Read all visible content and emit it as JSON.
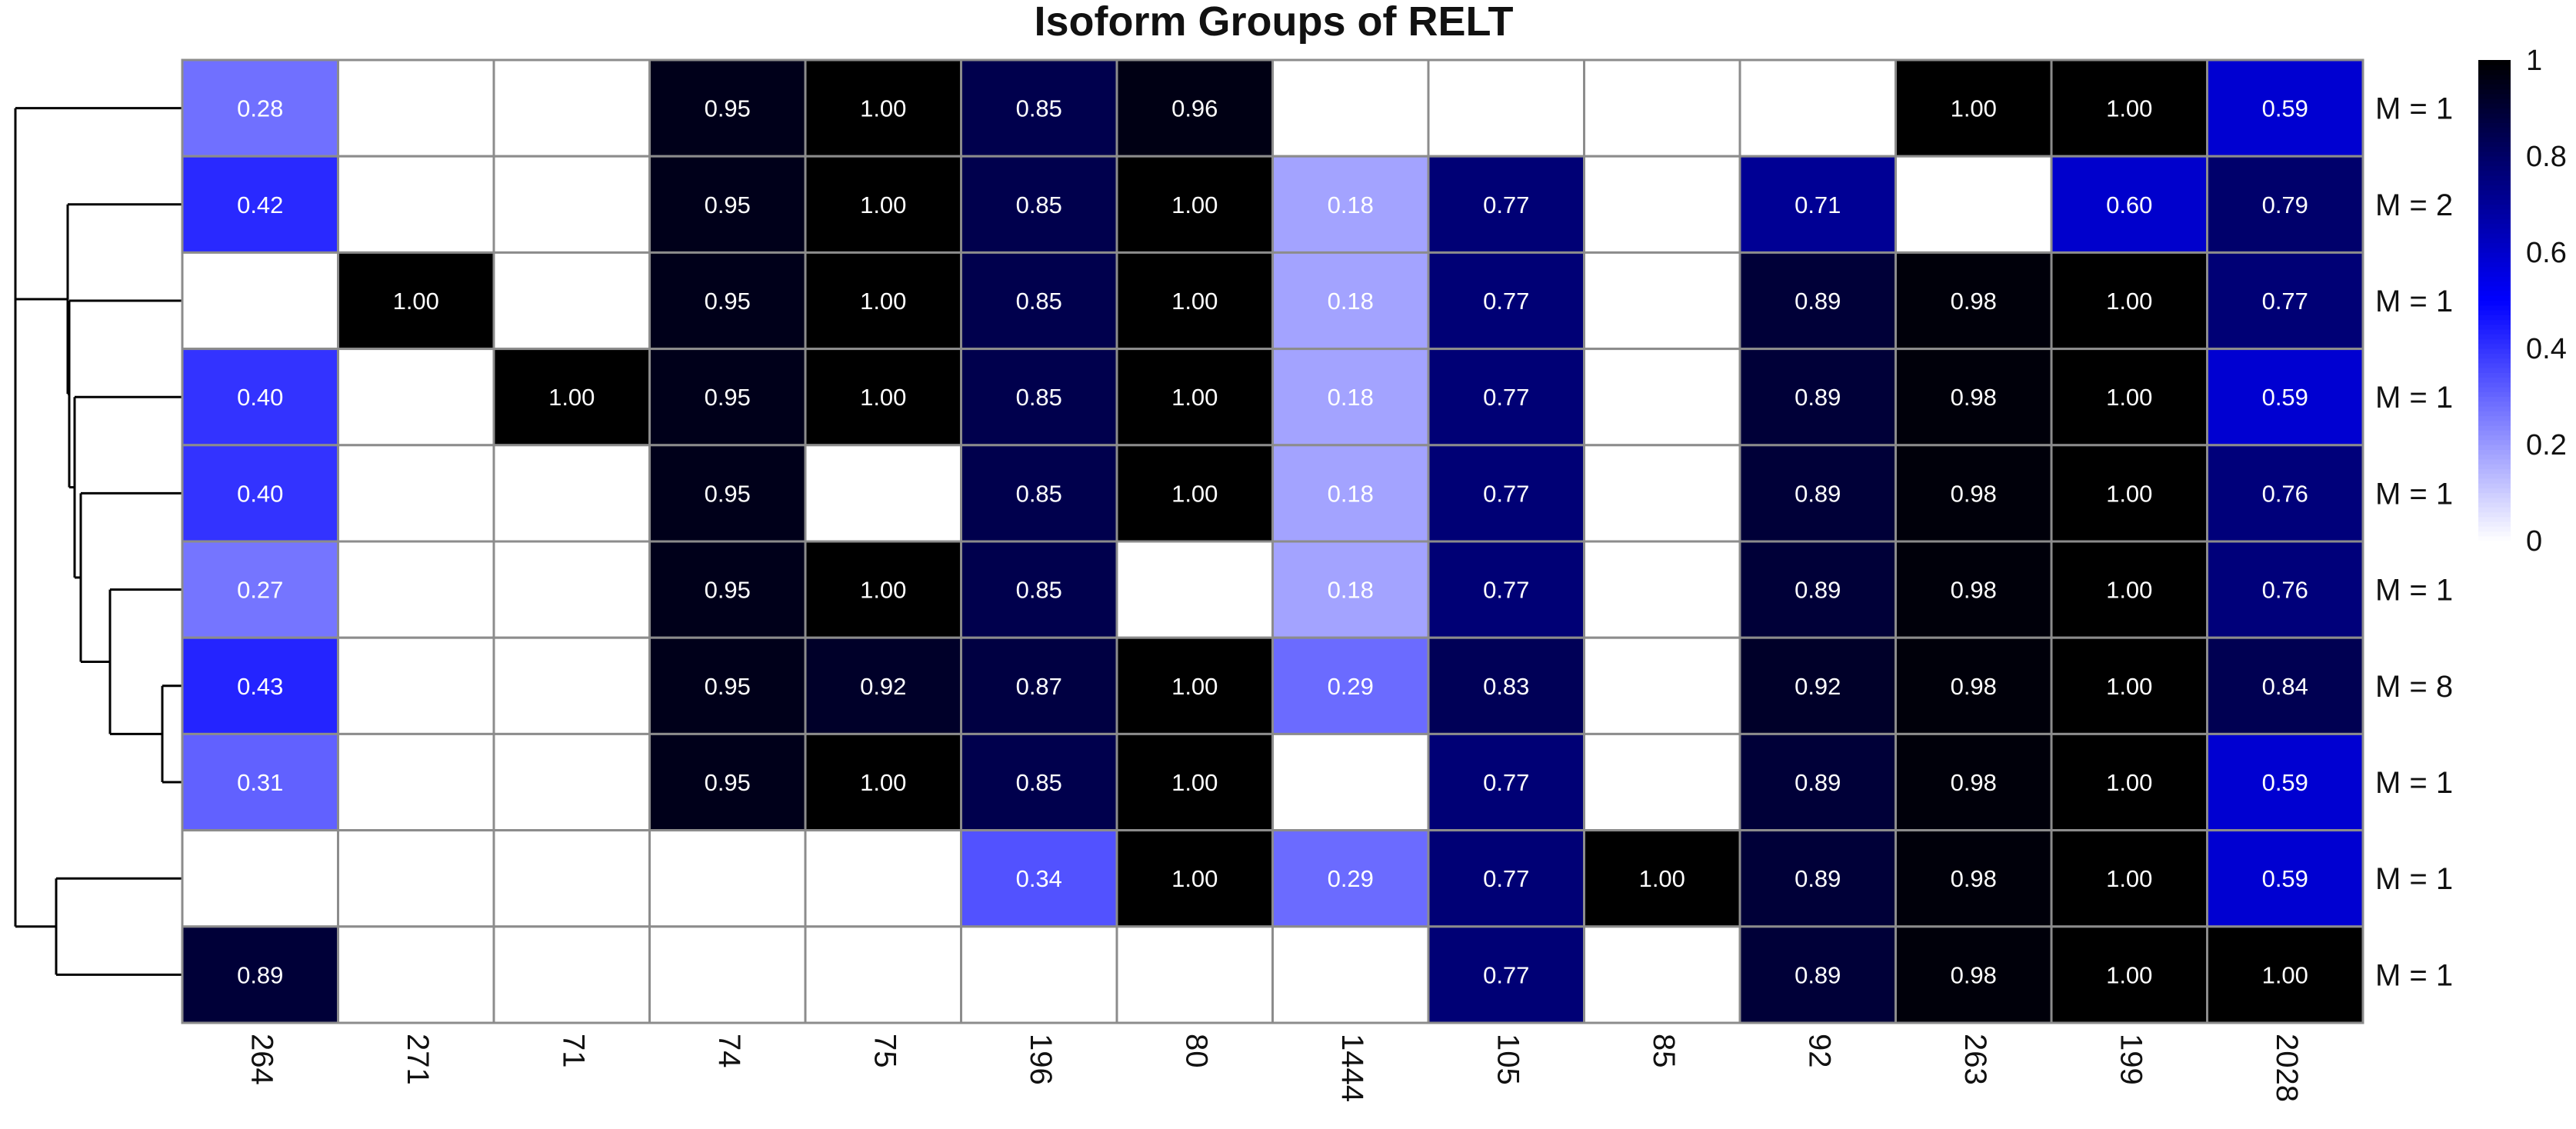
{
  "chart_data": {
    "type": "heatmap",
    "title": "Isoform Groups of RELT",
    "columns": [
      "264",
      "271",
      "71",
      "74",
      "75",
      "196",
      "80",
      "1444",
      "105",
      "85",
      "92",
      "263",
      "199",
      "2028"
    ],
    "rows": [
      "M = 1",
      "M = 2",
      "M = 1",
      "M = 1",
      "M = 1",
      "M = 1",
      "M = 8",
      "M = 1",
      "M = 1",
      "M = 1"
    ],
    "values": [
      [
        0.28,
        null,
        null,
        0.95,
        1.0,
        0.85,
        0.96,
        null,
        null,
        null,
        null,
        1.0,
        1.0,
        0.59
      ],
      [
        0.42,
        null,
        null,
        0.95,
        1.0,
        0.85,
        1.0,
        0.18,
        0.77,
        null,
        0.71,
        null,
        0.6,
        0.79
      ],
      [
        null,
        1.0,
        null,
        0.95,
        1.0,
        0.85,
        1.0,
        0.18,
        0.77,
        null,
        0.89,
        0.98,
        1.0,
        0.77
      ],
      [
        0.4,
        null,
        1.0,
        0.95,
        1.0,
        0.85,
        1.0,
        0.18,
        0.77,
        null,
        0.89,
        0.98,
        1.0,
        0.59
      ],
      [
        0.4,
        null,
        null,
        0.95,
        null,
        0.85,
        1.0,
        0.18,
        0.77,
        null,
        0.89,
        0.98,
        1.0,
        0.76
      ],
      [
        0.27,
        null,
        null,
        0.95,
        1.0,
        0.85,
        null,
        0.18,
        0.77,
        null,
        0.89,
        0.98,
        1.0,
        0.76
      ],
      [
        0.43,
        null,
        null,
        0.95,
        0.92,
        0.87,
        1.0,
        0.29,
        0.83,
        null,
        0.92,
        0.98,
        1.0,
        0.84
      ],
      [
        0.31,
        null,
        null,
        0.95,
        1.0,
        0.85,
        1.0,
        null,
        0.77,
        null,
        0.89,
        0.98,
        1.0,
        0.59
      ],
      [
        null,
        null,
        null,
        null,
        null,
        0.34,
        1.0,
        0.29,
        0.77,
        1.0,
        0.89,
        0.98,
        1.0,
        0.59
      ],
      [
        0.89,
        null,
        null,
        null,
        null,
        null,
        null,
        null,
        0.77,
        null,
        0.89,
        0.98,
        1.0,
        1.0
      ]
    ],
    "color_scale": {
      "min": 0,
      "max": 1,
      "stops": [
        "#ffffff",
        "#0000ff",
        "#000000"
      ],
      "ticks": [
        0,
        0.2,
        0.4,
        0.6,
        0.8,
        1
      ],
      "tick_labels": [
        "0",
        "0.2",
        "0.4",
        "0.6",
        "0.8",
        "1"
      ]
    },
    "row_dendrogram": true,
    "legend_position": "top-right",
    "grid_color": "#8c8c8c"
  }
}
